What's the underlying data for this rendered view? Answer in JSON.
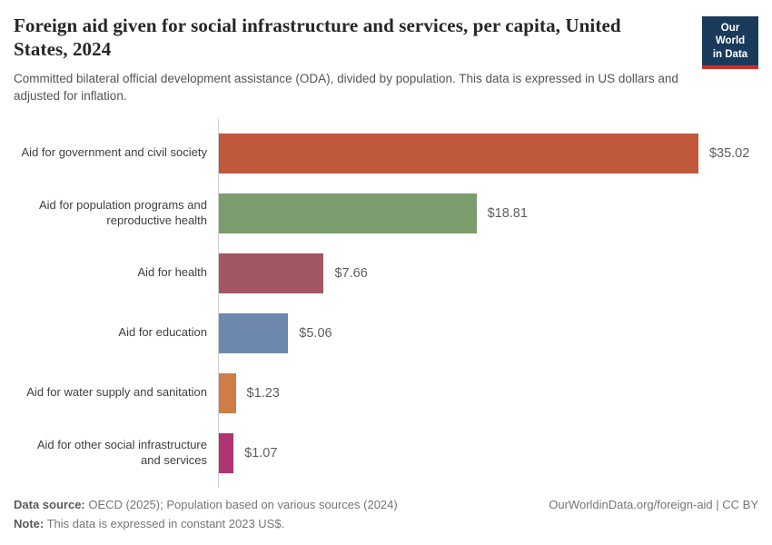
{
  "header": {
    "title": "Foreign aid given for social infrastructure and services, per capita, United States, 2024",
    "subtitle": "Committed bilateral official development assistance (ODA), divided by population. This data is expressed in US dollars and adjusted for inflation.",
    "logo": {
      "line1": "Our World",
      "line2": "in Data",
      "bg_color": "#1a3a5c",
      "accent_color": "#cf2d24"
    }
  },
  "chart_data": {
    "type": "bar",
    "orientation": "horizontal",
    "title": "Foreign aid given for social infrastructure and services, per capita, United States, 2024",
    "xlabel": "",
    "ylabel": "",
    "xlim": [
      0,
      39.4
    ],
    "grid": false,
    "legend": "none",
    "categories": [
      "Aid for government and civil society",
      "Aid for population programs and reproductive health",
      "Aid for health",
      "Aid for education",
      "Aid for water supply and sanitation",
      "Aid for other social infrastructure and services"
    ],
    "values": [
      35.02,
      18.81,
      7.66,
      5.06,
      1.23,
      1.07
    ],
    "value_labels": [
      "$35.02",
      "$18.81",
      "$7.66",
      "$5.06",
      "$1.23",
      "$1.07"
    ],
    "colors": [
      "#c0583b",
      "#7b9c6c",
      "#a25762",
      "#6e87ad",
      "#cd7d45",
      "#b03472"
    ],
    "unit": "US dollars (constant 2023 US$)"
  },
  "footer": {
    "data_source_label": "Data source:",
    "data_source_text": " OECD (2025); Population based on various sources (2024)",
    "note_label": "Note:",
    "note_text": " This data is expressed in constant 2023 US$.",
    "link": "OurWorldinData.org/foreign-aid | CC BY"
  }
}
